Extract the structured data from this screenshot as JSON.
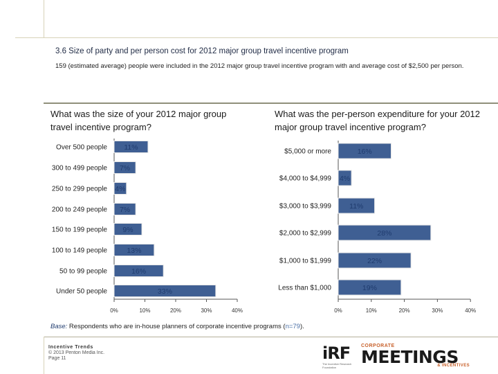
{
  "header": {
    "title": "3.6 Size of party and per person cost for 2012 major group travel incentive program",
    "subtitle": "159 (estimated average) people were included in the 2012 major group travel incentive program with and average cost of $2,500 per person."
  },
  "chart_data": [
    {
      "type": "bar",
      "orientation": "horizontal",
      "title": "What was the size of your 2012 major group travel incentive program?",
      "categories": [
        "Over 500 people",
        "300 to 499 people",
        "250 to 299 people",
        "200 to 249 people",
        "150 to 199 people",
        "100 to 149 people",
        "50 to 99 people",
        "Under 50 people"
      ],
      "values": [
        11,
        7,
        4,
        7,
        9,
        13,
        16,
        33
      ],
      "labels": [
        "11%",
        "7%",
        "4%",
        "7%",
        "9%",
        "13%",
        "16%",
        "33%"
      ],
      "xlim": [
        0,
        40
      ],
      "ticks": [
        "0%",
        "10%",
        "20%",
        "30%",
        "40%"
      ],
      "grid": false,
      "color": "#3f5f93"
    },
    {
      "type": "bar",
      "orientation": "horizontal",
      "title": "What was the per-person expenditure for your 2012 major group travel incentive program?",
      "categories": [
        "$5,000 or more",
        "$4,000 to $4,999",
        "$3,000 to $3,999",
        "$2,000 to $2,999",
        "$1,000 to $1,999",
        "Less than $1,000"
      ],
      "values": [
        16,
        4,
        11,
        28,
        22,
        19
      ],
      "labels": [
        "16%",
        "4%",
        "11%",
        "28%",
        "22%",
        "19%"
      ],
      "xlim": [
        0,
        40
      ],
      "ticks": [
        "0%",
        "10%",
        "20%",
        "30%",
        "40%"
      ],
      "grid": false,
      "color": "#3f5f93"
    }
  ],
  "base": {
    "label": "Base:",
    "text": " Respondents who are in-house planners of corporate incentive programs (",
    "n": "n=79",
    "close": ")."
  },
  "footer": {
    "line1": "Incentive Trends",
    "line2": "© 2013 Penton Media Inc.",
    "line3": "Page 11"
  },
  "logos": {
    "irf": "iRF",
    "irf_sub": "The Incentive Research Foundation",
    "cm_top": "CORPORATE",
    "cm_main": "MEETINGS",
    "cm_bottom": "& INCENTIVES"
  }
}
